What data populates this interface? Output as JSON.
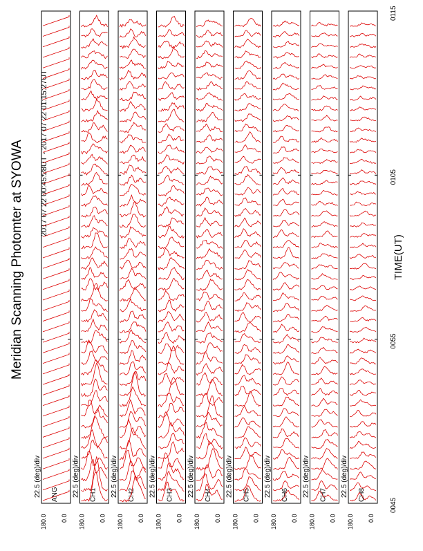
{
  "chart_data": {
    "type": "line",
    "title": "Meridian Scanning Photomter at SYOWA",
    "subtitle": "2017 07 22 00:45:28UT - 2017 07 22 01:15:27UT",
    "xlabel": "TIME(UT)",
    "x_ticks": [
      "0045",
      "0055",
      "0105",
      "0115"
    ],
    "scale_label": "22.5 (deg)/div",
    "y_tick_top": "180.0",
    "y_tick_bottom": "0.0",
    "line_color": "#dd0000",
    "grid": false,
    "panels": [
      {
        "label": "ANG",
        "kind": "angle",
        "traces": 46,
        "amplitude": 0.0,
        "peak_profile": [
          0.0,
          0.0,
          0.0,
          0.0
        ]
      },
      {
        "label": "CH1",
        "kind": "photometer",
        "traces": 46,
        "amplitude": 0.9,
        "peak_profile": [
          1.0,
          0.55,
          0.4,
          0.3
        ]
      },
      {
        "label": "CH2",
        "kind": "photometer",
        "traces": 46,
        "amplitude": 0.9,
        "peak_profile": [
          1.0,
          0.5,
          0.4,
          0.3
        ]
      },
      {
        "label": "CH3",
        "kind": "photometer",
        "traces": 46,
        "amplitude": 0.85,
        "peak_profile": [
          0.9,
          0.5,
          0.4,
          0.3
        ]
      },
      {
        "label": "CH4",
        "kind": "photometer",
        "traces": 46,
        "amplitude": 0.8,
        "peak_profile": [
          0.9,
          0.5,
          0.35,
          0.3
        ]
      },
      {
        "label": "CH5",
        "kind": "photometer",
        "traces": 46,
        "amplitude": 0.6,
        "peak_profile": [
          0.8,
          0.6,
          0.5,
          0.4
        ]
      },
      {
        "label": "CH6",
        "kind": "photometer",
        "traces": 46,
        "amplitude": 0.55,
        "peak_profile": [
          0.7,
          0.55,
          0.45,
          0.35
        ]
      },
      {
        "label": "CH7",
        "kind": "photometer",
        "traces": 46,
        "amplitude": 0.5,
        "peak_profile": [
          0.8,
          0.4,
          0.3,
          0.25
        ]
      },
      {
        "label": "CH8",
        "kind": "photometer",
        "traces": 46,
        "amplitude": 0.45,
        "peak_profile": [
          0.7,
          0.35,
          0.3,
          0.25
        ]
      }
    ]
  }
}
